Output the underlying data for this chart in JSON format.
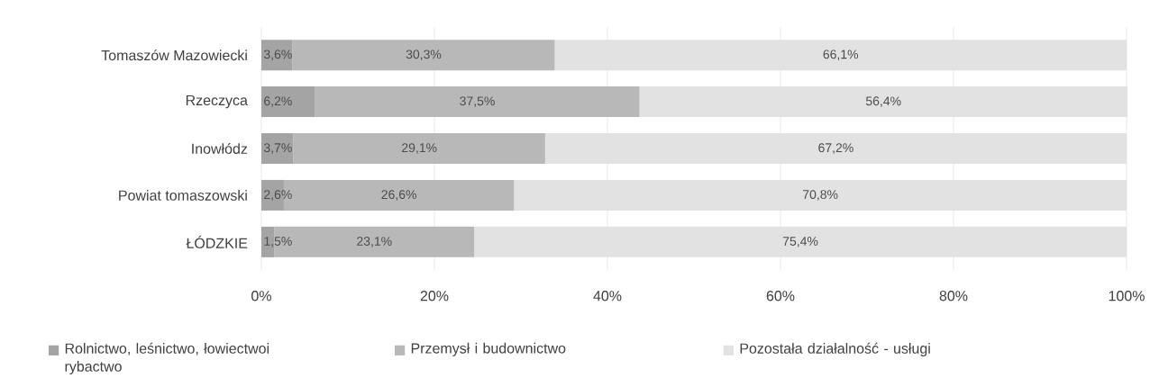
{
  "chart_data": {
    "type": "bar",
    "orientation": "horizontal",
    "stacked": true,
    "categories": [
      "Tomaszów Mazowiecki",
      "Rzeczyca",
      "Inowłódz",
      "Powiat tomaszowski",
      "ŁÓDZKIE"
    ],
    "series": [
      {
        "name": "Rolnictwo, leśnictwo, łowiectwoi rybactwo",
        "color": "#a4a4a4",
        "values": [
          3.6,
          6.2,
          3.7,
          2.6,
          1.5
        ],
        "value_labels": [
          "3,6%",
          "6,2%",
          "3,7%",
          "2,6%",
          "1,5%"
        ]
      },
      {
        "name": "Przemysł i budownictwo",
        "color": "#b8b8b8",
        "values": [
          30.3,
          37.5,
          29.1,
          26.6,
          23.1
        ],
        "value_labels": [
          "30,3%",
          "37,5%",
          "29,1%",
          "26,6%",
          "23,1%"
        ]
      },
      {
        "name": "Pozostała działalność - usługi",
        "color": "#e2e2e2",
        "values": [
          66.1,
          56.4,
          67.2,
          70.8,
          75.4
        ],
        "value_labels": [
          "66,1%",
          "56,4%",
          "67,2%",
          "70,8%",
          "75,4%"
        ]
      }
    ],
    "xlim": [
      0,
      100
    ],
    "xticks": [
      {
        "value": 0,
        "label": "0%"
      },
      {
        "value": 20,
        "label": "20%"
      },
      {
        "value": 40,
        "label": "40%"
      },
      {
        "value": 60,
        "label": "60%"
      },
      {
        "value": 80,
        "label": "80%"
      },
      {
        "value": 100,
        "label": "100%"
      }
    ],
    "grid": "x",
    "legend": "bottom"
  }
}
